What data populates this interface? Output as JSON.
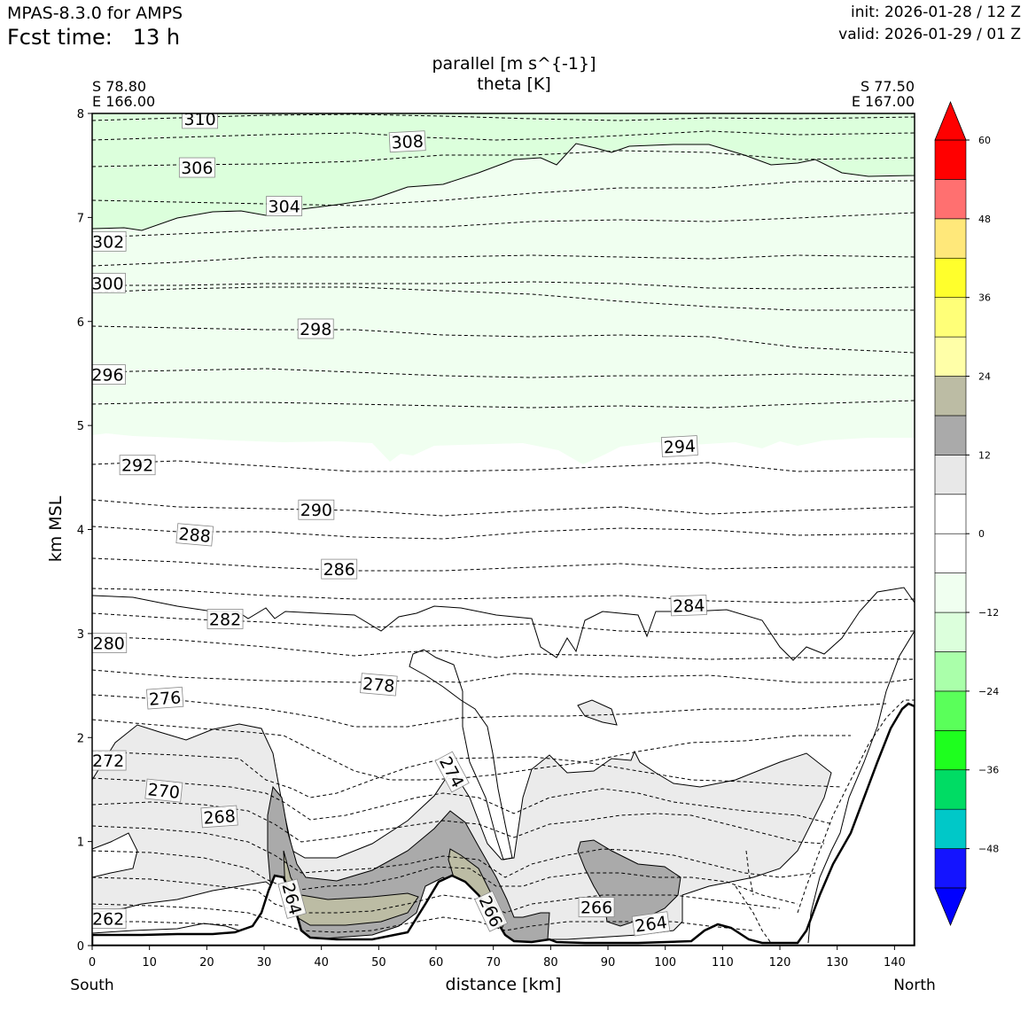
{
  "header": {
    "model": "MPAS-8.3.0 for AMPS",
    "fcst_label": "Fcst time:",
    "fcst_value": "13 h",
    "init": "init: 2026-01-28 / 12 Z",
    "valid": "valid: 2026-01-29 / 01 Z"
  },
  "chart_data": {
    "type": "contour_cross_section",
    "title": [
      "parallel [m s^{-1}]",
      "theta [K]"
    ],
    "xlabel": "distance [km]",
    "ylabel": "km MSL",
    "xlim": [
      0,
      143.5
    ],
    "ylim": [
      0,
      8
    ],
    "x_ticks": [
      0,
      10,
      20,
      30,
      40,
      50,
      60,
      70,
      80,
      90,
      100,
      110,
      120,
      130,
      140
    ],
    "y_ticks": [
      0,
      1,
      2,
      3,
      4,
      5,
      6,
      7,
      8
    ],
    "left_endpoint": [
      "S 78.80",
      "E 166.00"
    ],
    "right_endpoint": [
      "S 77.50",
      "E 167.00"
    ],
    "x_end_labels": [
      "South",
      "North"
    ],
    "colorbar": {
      "ticks": [
        "60",
        "48",
        "36",
        "24",
        "12",
        "0",
        "−12",
        "−24",
        "−36",
        "−48"
      ],
      "tick_values": [
        60,
        48,
        36,
        24,
        12,
        0,
        -12,
        -24,
        -36,
        -48
      ],
      "levels": [
        -54,
        -48,
        -42,
        -36,
        -30,
        -24,
        -18,
        -12,
        -6,
        0,
        6,
        12,
        18,
        24,
        30,
        36,
        42,
        48,
        54,
        60
      ],
      "colors": [
        "#1414ff",
        "#00c8c8",
        "#00dc64",
        "#1eff1e",
        "#5aff5a",
        "#aaffaa",
        "#dcffdc",
        "#f0fff0",
        "#ffffff",
        "#ffffff",
        "#e8e8e8",
        "#aaaaaa",
        "#bcbca4",
        "#ffffa8",
        "#ffff78",
        "#ffff2c",
        "#ffe87a",
        "#ff7070",
        "#ff0000"
      ],
      "under_color": "#0000ff",
      "over_color": "#ff0000"
    },
    "filled_regions": [
      {
        "name": "band-minus-12-to-minus-6",
        "value_range": [
          -12,
          -6
        ],
        "color": "#dcffdc"
      },
      {
        "name": "band-minus-6-to-0",
        "value_range": [
          -6,
          0
        ],
        "color": "#f0fff0"
      },
      {
        "name": "band-6-to-12",
        "value_range": [
          6,
          12
        ],
        "color": "#ebebeb"
      },
      {
        "name": "band-12-to-18",
        "value_range": [
          12,
          18
        ],
        "color": "#aaaaaa"
      },
      {
        "name": "band-18-to-24",
        "value_range": [
          18,
          24
        ],
        "color": "#bcbca4"
      }
    ],
    "theta_labels": [
      {
        "text": "310",
        "x": 18.8,
        "y": 7.95,
        "rot": 0
      },
      {
        "text": "308",
        "x": 55.0,
        "y": 7.73,
        "rot": -3
      },
      {
        "text": "306",
        "x": 18.3,
        "y": 7.48,
        "rot": 0
      },
      {
        "text": "304",
        "x": 33.5,
        "y": 7.11,
        "rot": 0
      },
      {
        "text": "302",
        "x": 2.8,
        "y": 6.77,
        "rot": 0
      },
      {
        "text": "300",
        "x": 2.7,
        "y": 6.37,
        "rot": 0
      },
      {
        "text": "298",
        "x": 39.0,
        "y": 5.93,
        "rot": 0
      },
      {
        "text": "296",
        "x": 2.7,
        "y": 5.49,
        "rot": 0
      },
      {
        "text": "294",
        "x": 102.5,
        "y": 4.8,
        "rot": -3
      },
      {
        "text": "292",
        "x": 7.9,
        "y": 4.62,
        "rot": 0
      },
      {
        "text": "290",
        "x": 39.1,
        "y": 4.19,
        "rot": 0
      },
      {
        "text": "288",
        "x": 17.9,
        "y": 3.95,
        "rot": 5
      },
      {
        "text": "286",
        "x": 43.1,
        "y": 3.62,
        "rot": 0
      },
      {
        "text": "284",
        "x": 104.1,
        "y": 3.27,
        "rot": -2
      },
      {
        "text": "282",
        "x": 23.2,
        "y": 3.14,
        "rot": 0
      },
      {
        "text": "280",
        "x": 2.9,
        "y": 2.91,
        "rot": 0
      },
      {
        "text": "278",
        "x": 50.0,
        "y": 2.51,
        "rot": 5
      },
      {
        "text": "276",
        "x": 12.7,
        "y": 2.38,
        "rot": -4
      },
      {
        "text": "274",
        "x": 62.8,
        "y": 1.67,
        "rot": 62
      },
      {
        "text": "272",
        "x": 2.8,
        "y": 1.78,
        "rot": 0
      },
      {
        "text": "270",
        "x": 12.5,
        "y": 1.49,
        "rot": 6
      },
      {
        "text": "268",
        "x": 22.2,
        "y": 1.24,
        "rot": -4
      },
      {
        "text": "266",
        "x": 88.0,
        "y": 0.37,
        "rot": 0
      },
      {
        "text": "266",
        "x": 69.6,
        "y": 0.33,
        "rot": 65
      },
      {
        "text": "264",
        "x": 34.9,
        "y": 0.45,
        "rot": 75
      },
      {
        "text": "264",
        "x": 97.5,
        "y": 0.21,
        "rot": -8
      },
      {
        "text": "262",
        "x": 2.8,
        "y": 0.26,
        "rot": 0
      }
    ]
  }
}
